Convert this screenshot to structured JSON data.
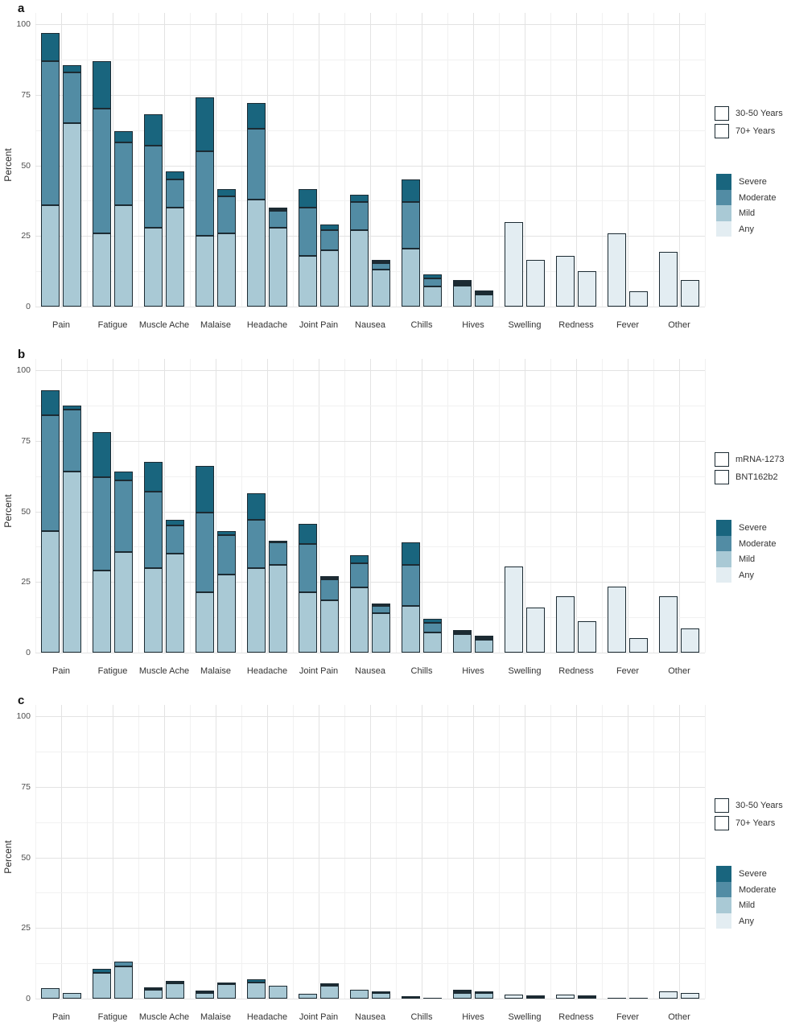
{
  "figure": {
    "ylabel": "Percent",
    "yticks": [
      0,
      25,
      50,
      75,
      100
    ],
    "severity_legend": [
      "Severe",
      "Moderate",
      "Mild",
      "Any"
    ],
    "colors": {
      "severe": "#19657e",
      "moderate": "#528ca4",
      "mild": "#a9c9d5",
      "any": "#e3edf2",
      "outline": "#1c2b33",
      "grid_major": "#e3e3e3",
      "grid_minor": "#f1f1f1"
    }
  },
  "chart_data": [
    {
      "type": "bar",
      "panel_label": "a",
      "stacking": "stacked",
      "ylabel": "Percent",
      "ylim": [
        0,
        100
      ],
      "grid": true,
      "legend_position": "right",
      "categories": [
        "Pain",
        "Fatigue",
        "Muscle Ache",
        "Malaise",
        "Headache",
        "Joint Pain",
        "Nausea",
        "Chills",
        "Hives",
        "Swelling",
        "Redness",
        "Fever",
        "Other"
      ],
      "group_legend": [
        {
          "label": "30-50 Years",
          "pattern": "plain"
        },
        {
          "label": "70+ Years",
          "pattern": "hatch"
        }
      ],
      "series": [
        {
          "name": "30-50 Years",
          "pattern": "plain",
          "values": [
            {
              "mild": 36,
              "moderate": 51,
              "severe": 10
            },
            {
              "mild": 26,
              "moderate": 44,
              "severe": 17
            },
            {
              "mild": 28,
              "moderate": 29,
              "severe": 11
            },
            {
              "mild": 25,
              "moderate": 30,
              "severe": 19
            },
            {
              "mild": 38,
              "moderate": 25,
              "severe": 9
            },
            {
              "mild": 18,
              "moderate": 17,
              "severe": 6.5
            },
            {
              "mild": 27,
              "moderate": 10,
              "severe": 2.5
            },
            {
              "mild": 20.5,
              "moderate": 16.5,
              "severe": 8
            },
            {
              "mild": 7.5,
              "moderate": 1,
              "severe": 1
            },
            {
              "any": 30
            },
            {
              "any": 18
            },
            {
              "any": 26
            },
            {
              "any": 19.5
            }
          ]
        },
        {
          "name": "70+ Years",
          "pattern": "hatch",
          "values": [
            {
              "mild": 65,
              "moderate": 18,
              "severe": 2.5
            },
            {
              "mild": 36,
              "moderate": 22,
              "severe": 4
            },
            {
              "mild": 35,
              "moderate": 10,
              "severe": 3
            },
            {
              "mild": 26,
              "moderate": 13,
              "severe": 2.5
            },
            {
              "mild": 28,
              "moderate": 6,
              "severe": 1
            },
            {
              "mild": 20,
              "moderate": 7,
              "severe": 2
            },
            {
              "mild": 13,
              "moderate": 2.5,
              "severe": 1
            },
            {
              "mild": 7,
              "moderate": 3,
              "severe": 1.5
            },
            {
              "mild": 4.3,
              "moderate": 1,
              "severe": 0.5
            },
            {
              "any": 16.5
            },
            {
              "any": 12.5
            },
            {
              "any": 5.5
            },
            {
              "any": 9.5
            }
          ]
        }
      ]
    },
    {
      "type": "bar",
      "panel_label": "b",
      "stacking": "stacked",
      "ylabel": "Percent",
      "ylim": [
        0,
        100
      ],
      "grid": true,
      "legend_position": "right",
      "categories": [
        "Pain",
        "Fatigue",
        "Muscle Ache",
        "Malaise",
        "Headache",
        "Joint Pain",
        "Nausea",
        "Chills",
        "Hives",
        "Swelling",
        "Redness",
        "Fever",
        "Other"
      ],
      "group_legend": [
        {
          "label": "mRNA-1273",
          "pattern": "plain"
        },
        {
          "label": "BNT162b2",
          "pattern": "dots"
        }
      ],
      "series": [
        {
          "name": "mRNA-1273",
          "pattern": "plain",
          "values": [
            {
              "mild": 43,
              "moderate": 41,
              "severe": 9
            },
            {
              "mild": 29,
              "moderate": 33,
              "severe": 16
            },
            {
              "mild": 30,
              "moderate": 27,
              "severe": 10.5
            },
            {
              "mild": 21.5,
              "moderate": 28,
              "severe": 16.5
            },
            {
              "mild": 30,
              "moderate": 17,
              "severe": 9.5
            },
            {
              "mild": 21.5,
              "moderate": 17,
              "severe": 7
            },
            {
              "mild": 23,
              "moderate": 8.5,
              "severe": 3
            },
            {
              "mild": 16.5,
              "moderate": 14.5,
              "severe": 8
            },
            {
              "mild": 6.5,
              "moderate": 1,
              "severe": 0.5
            },
            {
              "any": 30.5
            },
            {
              "any": 20
            },
            {
              "any": 23.5
            },
            {
              "any": 20
            }
          ]
        },
        {
          "name": "BNT162b2",
          "pattern": "dots",
          "values": [
            {
              "mild": 64,
              "moderate": 22,
              "severe": 1.5
            },
            {
              "mild": 35.5,
              "moderate": 25.5,
              "severe": 3
            },
            {
              "mild": 35,
              "moderate": 10,
              "severe": 2
            },
            {
              "mild": 27.5,
              "moderate": 14,
              "severe": 1.5
            },
            {
              "mild": 31,
              "moderate": 8,
              "severe": 0.5
            },
            {
              "mild": 18.5,
              "moderate": 7.5,
              "severe": 1
            },
            {
              "mild": 14,
              "moderate": 2.5,
              "severe": 1
            },
            {
              "mild": 7,
              "moderate": 3.5,
              "severe": 1.5
            },
            {
              "mild": 4.5,
              "moderate": 1,
              "severe": 0.5
            },
            {
              "any": 16
            },
            {
              "any": 11
            },
            {
              "any": 5
            },
            {
              "any": 8.5
            }
          ]
        }
      ]
    },
    {
      "type": "bar",
      "panel_label": "c",
      "stacking": "stacked",
      "ylabel": "Percent",
      "ylim": [
        0,
        100
      ],
      "grid": true,
      "legend_position": "right",
      "categories": [
        "Pain",
        "Fatigue",
        "Muscle Ache",
        "Malaise",
        "Headache",
        "Joint Pain",
        "Nausea",
        "Chills",
        "Hives",
        "Swelling",
        "Redness",
        "Fever",
        "Other"
      ],
      "group_legend": [
        {
          "label": "30-50 Years",
          "pattern": "plain"
        },
        {
          "label": "70+ Years",
          "pattern": "hatch"
        }
      ],
      "series": [
        {
          "name": "30-50 Years",
          "pattern": "plain",
          "values": [
            {
              "mild": 3.7
            },
            {
              "mild": 9.2,
              "severe": 1.2
            },
            {
              "mild": 3,
              "severe": 1
            },
            {
              "mild": 2.1,
              "severe": 0.8
            },
            {
              "mild": 5.6,
              "severe": 1.2
            },
            {
              "mild": 1.8
            },
            {
              "mild": 3
            },
            {
              "mild": 0.4,
              "severe": 0.5
            },
            {
              "mild": 2,
              "severe": 1
            },
            {
              "any": 1.5
            },
            {
              "any": 1.5
            },
            {
              "any": 0.3
            },
            {
              "any": 2.5
            }
          ]
        },
        {
          "name": "70+ Years",
          "pattern": "hatch",
          "values": [
            {
              "mild": 2
            },
            {
              "mild": 11.5,
              "moderate": 1.5
            },
            {
              "mild": 5.3,
              "moderate": 1
            },
            {
              "mild": 5,
              "moderate": 0.8
            },
            {
              "mild": 4.5
            },
            {
              "mild": 4.5,
              "moderate": 1
            },
            {
              "mild": 2,
              "moderate": 0.5
            },
            {
              "mild": 0.4
            },
            {
              "mild": 2,
              "moderate": 0.5
            },
            {
              "any": 1
            },
            {
              "any": 1
            },
            {
              "any": 0.3
            },
            {
              "any": 2
            }
          ]
        }
      ]
    }
  ]
}
